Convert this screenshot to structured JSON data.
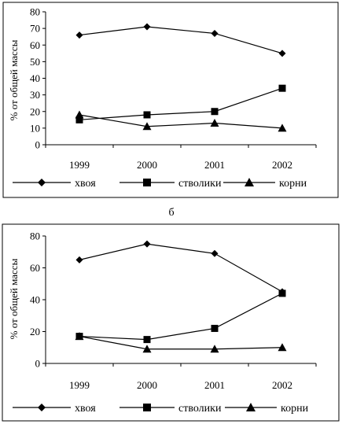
{
  "chart_data": [
    {
      "type": "line",
      "ylabel": "% от общей массы",
      "ylim": [
        0,
        80
      ],
      "yticks": [
        0,
        10,
        20,
        30,
        40,
        50,
        60,
        70,
        80
      ],
      "categories": [
        "1999",
        "2000",
        "2001",
        "2002"
      ],
      "series": [
        {
          "name": "хвоя",
          "marker": "diamond",
          "values": [
            66,
            71,
            67,
            55
          ]
        },
        {
          "name": "стволики",
          "marker": "square",
          "values": [
            15,
            18,
            20,
            34
          ]
        },
        {
          "name": "корни",
          "marker": "triangle",
          "values": [
            18,
            11,
            13,
            10
          ]
        }
      ],
      "legend": "bottom",
      "grid": false
    },
    {
      "type": "line",
      "title": "б",
      "ylabel": "% от общей массы",
      "ylim": [
        0,
        80
      ],
      "yticks": [
        0,
        20,
        40,
        60,
        80
      ],
      "categories": [
        "1999",
        "2000",
        "2001",
        "2002"
      ],
      "series": [
        {
          "name": "хвоя",
          "marker": "diamond",
          "values": [
            65,
            75,
            69,
            45
          ]
        },
        {
          "name": "стволики",
          "marker": "square",
          "values": [
            17,
            15,
            22,
            44
          ]
        },
        {
          "name": "корни",
          "marker": "triangle",
          "values": [
            17,
            9,
            9,
            10
          ]
        }
      ],
      "legend": "bottom",
      "grid": false
    }
  ]
}
